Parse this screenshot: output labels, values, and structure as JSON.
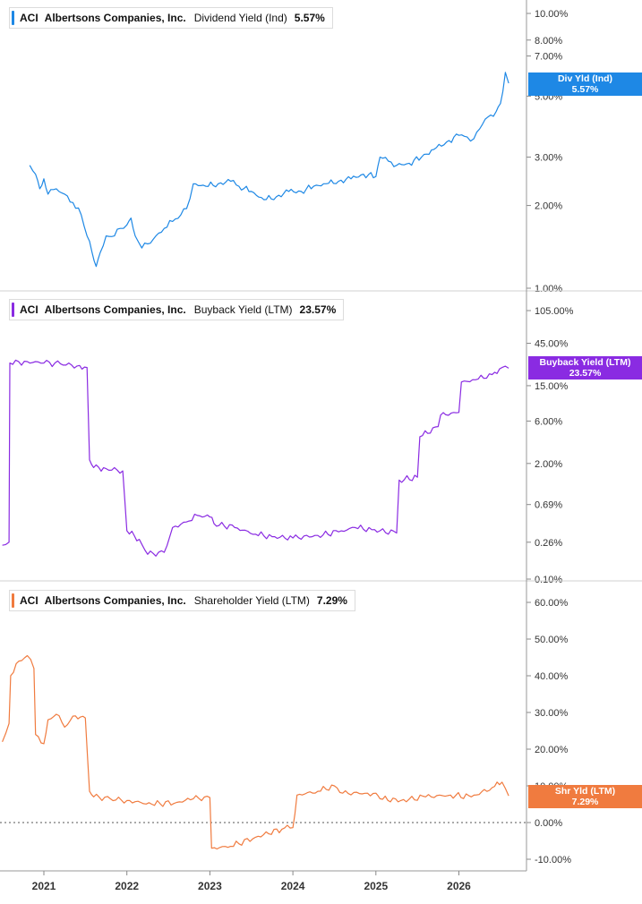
{
  "chart_data": [
    {
      "type": "line",
      "ticker": "ACI",
      "company": "Albertsons Companies, Inc.",
      "metric": "Dividend Yield (Ind)",
      "current_value": "5.57%",
      "tag": {
        "label": "Div Yld (Ind)",
        "value": "5.57%"
      },
      "color": "#1e88e5",
      "scale": "log",
      "ylim": [
        1.0,
        12.5
      ],
      "y_ticks": [
        "1.00%",
        "2.00%",
        "3.00%",
        "5.00%",
        "7.00%",
        "8.00%",
        "10.00%"
      ],
      "y_tick_values": [
        1.0,
        2.0,
        3.0,
        5.0,
        7.0,
        8.0,
        10.0
      ],
      "zero_line": false,
      "series": [
        {
          "values": [
            [
              2020.83,
              2.8
            ],
            [
              2020.9,
              2.6
            ],
            [
              2020.95,
              2.3
            ],
            [
              2021.0,
              2.5
            ],
            [
              2021.05,
              2.2
            ],
            [
              2021.15,
              2.3
            ],
            [
              2021.25,
              2.2
            ],
            [
              2021.35,
              2.05
            ],
            [
              2021.45,
              1.85
            ],
            [
              2021.52,
              1.55
            ],
            [
              2021.58,
              1.35
            ],
            [
              2021.63,
              1.2
            ],
            [
              2021.68,
              1.35
            ],
            [
              2021.75,
              1.55
            ],
            [
              2021.85,
              1.55
            ],
            [
              2021.92,
              1.65
            ],
            [
              2022.0,
              1.7
            ],
            [
              2022.05,
              1.8
            ],
            [
              2022.1,
              1.55
            ],
            [
              2022.18,
              1.4
            ],
            [
              2022.25,
              1.45
            ],
            [
              2022.35,
              1.55
            ],
            [
              2022.45,
              1.65
            ],
            [
              2022.55,
              1.75
            ],
            [
              2022.65,
              1.85
            ],
            [
              2022.72,
              1.95
            ],
            [
              2022.8,
              2.4
            ],
            [
              2022.95,
              2.35
            ],
            [
              2023.1,
              2.4
            ],
            [
              2023.25,
              2.45
            ],
            [
              2023.35,
              2.35
            ],
            [
              2023.5,
              2.25
            ],
            [
              2023.65,
              2.1
            ],
            [
              2023.8,
              2.15
            ],
            [
              2023.95,
              2.25
            ],
            [
              2024.1,
              2.25
            ],
            [
              2024.25,
              2.35
            ],
            [
              2024.4,
              2.4
            ],
            [
              2024.55,
              2.45
            ],
            [
              2024.7,
              2.5
            ],
            [
              2024.85,
              2.6
            ],
            [
              2025.0,
              2.55
            ],
            [
              2025.05,
              3.0
            ],
            [
              2025.15,
              2.9
            ],
            [
              2025.25,
              2.8
            ],
            [
              2025.4,
              2.85
            ],
            [
              2025.55,
              3.0
            ],
            [
              2025.7,
              3.2
            ],
            [
              2025.85,
              3.4
            ],
            [
              2026.0,
              3.6
            ],
            [
              2026.1,
              3.55
            ],
            [
              2026.18,
              3.5
            ],
            [
              2026.25,
              3.8
            ],
            [
              2026.35,
              4.2
            ],
            [
              2026.45,
              4.4
            ],
            [
              2026.5,
              4.7
            ],
            [
              2026.53,
              5.2
            ],
            [
              2026.56,
              6.1
            ],
            [
              2026.6,
              5.57
            ]
          ]
        }
      ]
    },
    {
      "type": "line",
      "ticker": "ACI",
      "company": "Albertsons Companies, Inc.",
      "metric": "Buyback Yield (LTM)",
      "current_value": "23.57%",
      "tag": {
        "label": "Buyback Yield (LTM)",
        "value": "23.57%"
      },
      "color": "#8a2be2",
      "scale": "log",
      "ylim": [
        0.1,
        190
      ],
      "y_ticks": [
        "0.10%",
        "0.26%",
        "0.69%",
        "2.00%",
        "6.00%",
        "15.00%",
        "45.00%",
        "105.00%"
      ],
      "y_tick_values": [
        0.1,
        0.26,
        0.69,
        2.0,
        6.0,
        15.0,
        45.0,
        105.0
      ],
      "zero_line": false,
      "series": [
        {
          "values": [
            [
              2020.5,
              0.24
            ],
            [
              2020.58,
              0.26
            ],
            [
              2020.59,
              27.0
            ],
            [
              2020.8,
              28.0
            ],
            [
              2021.0,
              27.0
            ],
            [
              2021.2,
              26.5
            ],
            [
              2021.4,
              25.0
            ],
            [
              2021.52,
              24.0
            ],
            [
              2021.55,
              2.2
            ],
            [
              2021.6,
              1.8
            ],
            [
              2021.75,
              1.75
            ],
            [
              2021.95,
              1.65
            ],
            [
              2022.0,
              0.35
            ],
            [
              2022.15,
              0.28
            ],
            [
              2022.25,
              0.19
            ],
            [
              2022.45,
              0.2
            ],
            [
              2022.55,
              0.38
            ],
            [
              2022.75,
              0.45
            ],
            [
              2022.85,
              0.52
            ],
            [
              2023.0,
              0.5
            ],
            [
              2023.05,
              0.42
            ],
            [
              2023.3,
              0.38
            ],
            [
              2023.55,
              0.32
            ],
            [
              2023.75,
              0.3
            ],
            [
              2024.0,
              0.29
            ],
            [
              2024.3,
              0.31
            ],
            [
              2024.55,
              0.34
            ],
            [
              2024.75,
              0.38
            ],
            [
              2024.95,
              0.36
            ],
            [
              2025.25,
              0.33
            ],
            [
              2025.28,
              1.3
            ],
            [
              2025.5,
              1.4
            ],
            [
              2025.53,
              4.0
            ],
            [
              2025.75,
              5.2
            ],
            [
              2025.78,
              7.0
            ],
            [
              2026.0,
              7.5
            ],
            [
              2026.03,
              16.5
            ],
            [
              2026.2,
              17.5
            ],
            [
              2026.4,
              20.0
            ],
            [
              2026.52,
              24.0
            ],
            [
              2026.6,
              23.57
            ]
          ]
        }
      ]
    },
    {
      "type": "line",
      "ticker": "ACI",
      "company": "Albertsons Companies, Inc.",
      "metric": "Shareholder Yield (LTM)",
      "current_value": "7.29%",
      "tag": {
        "label": "Shr Yld (LTM)",
        "value": "7.29%"
      },
      "color": "#f07b3f",
      "scale": "linear",
      "ylim": [
        -12,
        62
      ],
      "y_ticks": [
        "-10.00%",
        "0.00%",
        "10.00%",
        "20.00%",
        "30.00%",
        "40.00%",
        "50.00%",
        "60.00%"
      ],
      "y_tick_values": [
        -10,
        0,
        10,
        20,
        30,
        40,
        50,
        60
      ],
      "zero_line": true,
      "series": [
        {
          "values": [
            [
              2020.5,
              22.0
            ],
            [
              2020.58,
              27.0
            ],
            [
              2020.6,
              40.0
            ],
            [
              2020.7,
              44.0
            ],
            [
              2020.8,
              45.5
            ],
            [
              2020.88,
              42.0
            ],
            [
              2020.9,
              24.0
            ],
            [
              2021.0,
              21.5
            ],
            [
              2021.05,
              28.0
            ],
            [
              2021.15,
              29.5
            ],
            [
              2021.25,
              26.0
            ],
            [
              2021.35,
              29.0
            ],
            [
              2021.5,
              28.5
            ],
            [
              2021.55,
              8.5
            ],
            [
              2021.6,
              7.0
            ],
            [
              2021.8,
              6.5
            ],
            [
              2022.0,
              6.0
            ],
            [
              2022.3,
              5.0
            ],
            [
              2022.6,
              5.5
            ],
            [
              2022.8,
              6.5
            ],
            [
              2023.0,
              6.8
            ],
            [
              2023.02,
              -7.0
            ],
            [
              2023.25,
              -6.5
            ],
            [
              2023.55,
              -4.0
            ],
            [
              2023.9,
              -1.5
            ],
            [
              2024.0,
              -1.4
            ],
            [
              2024.05,
              7.5
            ],
            [
              2024.3,
              8.5
            ],
            [
              2024.5,
              10.0
            ],
            [
              2024.6,
              8.0
            ],
            [
              2024.9,
              8.0
            ],
            [
              2025.0,
              8.0
            ],
            [
              2025.05,
              6.5
            ],
            [
              2025.3,
              6.0
            ],
            [
              2025.6,
              7.0
            ],
            [
              2025.9,
              7.5
            ],
            [
              2026.15,
              7.0
            ],
            [
              2026.4,
              9.5
            ],
            [
              2026.52,
              11.0
            ],
            [
              2026.6,
              7.29
            ]
          ]
        }
      ]
    }
  ],
  "x_axis": {
    "ticks": [
      "2021",
      "2022",
      "2023",
      "2024",
      "2025",
      "2026"
    ],
    "tick_values": [
      2021,
      2022,
      2023,
      2024,
      2025,
      2026
    ],
    "xlim": [
      2020.5,
      2026.78
    ]
  }
}
